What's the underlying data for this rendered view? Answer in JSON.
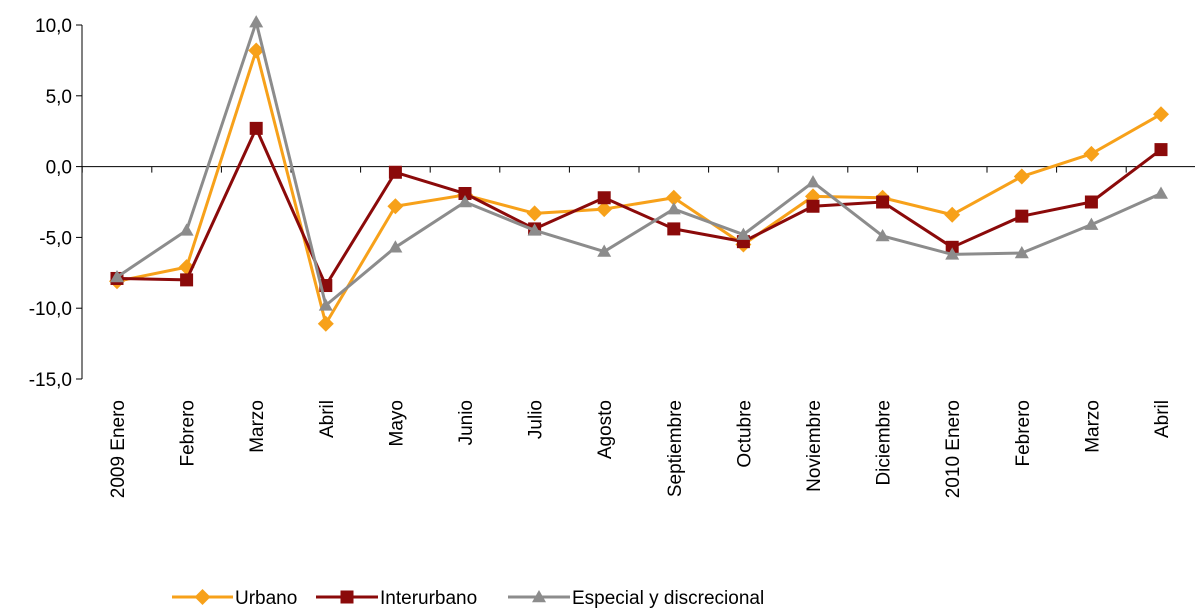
{
  "chart_data": {
    "type": "line",
    "title": "",
    "xlabel": "",
    "ylabel": "",
    "ylim": [
      -15,
      10
    ],
    "yticks": [
      10,
      5,
      0,
      -5,
      -10,
      -15
    ],
    "ytick_labels": [
      "10,0",
      "5,0",
      "0,0",
      "-5,0",
      "-10,0",
      "-15,0"
    ],
    "categories": [
      "2009 Enero",
      "Febrero",
      "Marzo",
      "Abril",
      "Mayo",
      "Junio",
      "Julio",
      "Agosto",
      "Septiembre",
      "Octubre",
      "Noviembre",
      "Diciembre",
      "2010 Enero",
      "Febrero",
      "Marzo",
      "Abril"
    ],
    "grid": false,
    "legend_position": "bottom",
    "series": [
      {
        "name": "Urbano",
        "color": "#F7A11A",
        "marker": "diamond",
        "values": [
          -8.1,
          -7.1,
          8.2,
          -11.1,
          -2.8,
          -2.0,
          -3.3,
          -3.0,
          -2.2,
          -5.5,
          -2.1,
          -2.2,
          -3.4,
          -0.7,
          0.9,
          3.7
        ]
      },
      {
        "name": "Interurbano",
        "color": "#8B0A0A",
        "marker": "square",
        "values": [
          -7.9,
          -8.0,
          2.7,
          -8.4,
          -0.4,
          -1.9,
          -4.4,
          -2.2,
          -4.4,
          -5.3,
          -2.8,
          -2.5,
          -5.7,
          -3.5,
          -2.5,
          1.2
        ]
      },
      {
        "name": "Especial y discrecional",
        "color": "#8C8C8C",
        "marker": "triangle",
        "values": [
          -7.8,
          -4.5,
          10.2,
          -9.8,
          -5.7,
          -2.5,
          -4.5,
          -6.0,
          -3.0,
          -4.8,
          -1.1,
          -4.9,
          -6.2,
          -6.1,
          -4.1,
          -1.9
        ]
      }
    ]
  }
}
